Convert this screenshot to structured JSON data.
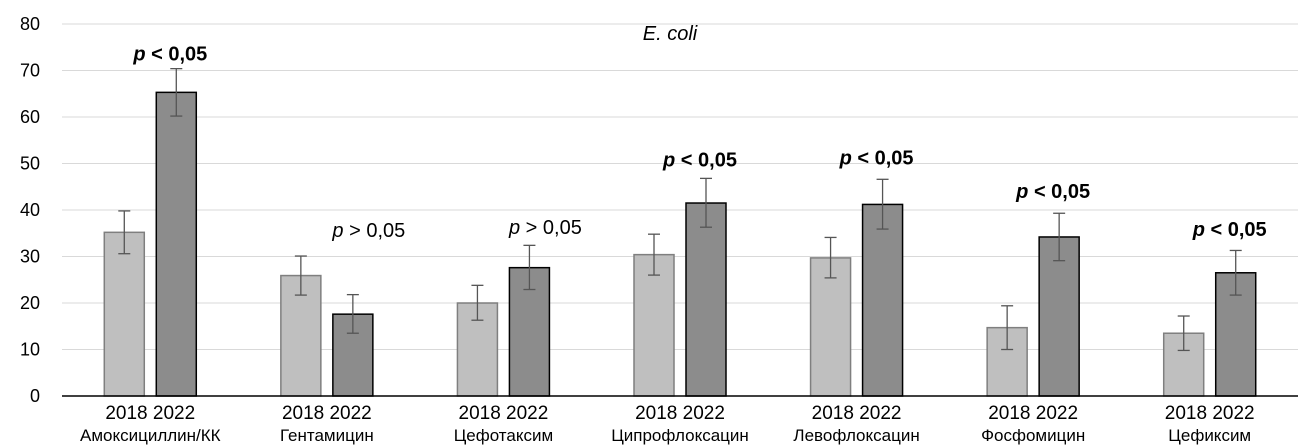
{
  "chart_data": {
    "type": "bar",
    "title": "E. coli",
    "xlabel": "",
    "ylabel": "",
    "ylim": [
      0,
      80
    ],
    "yticks": [
      0,
      10,
      20,
      30,
      40,
      50,
      60,
      70,
      80
    ],
    "grid": true,
    "legend": "none",
    "categories": [
      "Амоксициллин/КК",
      "Гентамицин",
      "Цефотаксим",
      "Ципрофлоксацин",
      "Левофлоксацин",
      "Фосфомицин",
      "Цефиксим"
    ],
    "series": [
      {
        "name": "2018",
        "color": "#bfbfbf",
        "values": [
          35.2,
          25.9,
          20.0,
          30.4,
          29.7,
          14.7,
          13.5
        ],
        "err_low": [
          30.6,
          21.7,
          16.3,
          26.0,
          25.4,
          10.0,
          9.8
        ],
        "err_high": [
          39.8,
          30.1,
          23.8,
          34.8,
          34.1,
          19.4,
          17.2
        ]
      },
      {
        "name": "2022",
        "color": "#8c8c8c",
        "values": [
          65.3,
          17.6,
          27.6,
          41.5,
          41.2,
          34.2,
          26.5
        ],
        "err_low": [
          60.2,
          13.5,
          22.9,
          36.3,
          35.9,
          29.1,
          21.7
        ],
        "err_high": [
          70.4,
          21.8,
          32.4,
          46.8,
          46.6,
          39.3,
          31.3
        ]
      }
    ],
    "annotations": [
      {
        "category": 0,
        "p": "p",
        "text": " < 0,05",
        "bold": true,
        "y": 72.2
      },
      {
        "category": 1,
        "p": "p",
        "text": " > 0,05",
        "bold": false,
        "y": 34.2
      },
      {
        "category": 2,
        "p": "p",
        "text": " > 0,05",
        "bold": false,
        "y": 34.8
      },
      {
        "category": 3,
        "p": "p",
        "text": " < 0,05",
        "bold": true,
        "y": 49.4
      },
      {
        "category": 4,
        "p": "p",
        "text": " < 0,05",
        "bold": true,
        "y": 49.8
      },
      {
        "category": 5,
        "p": "p",
        "text": " < 0,05",
        "bold": true,
        "y": 42.6
      },
      {
        "category": 6,
        "p": "p",
        "text": " < 0,05",
        "bold": true,
        "y": 34.4
      }
    ]
  }
}
